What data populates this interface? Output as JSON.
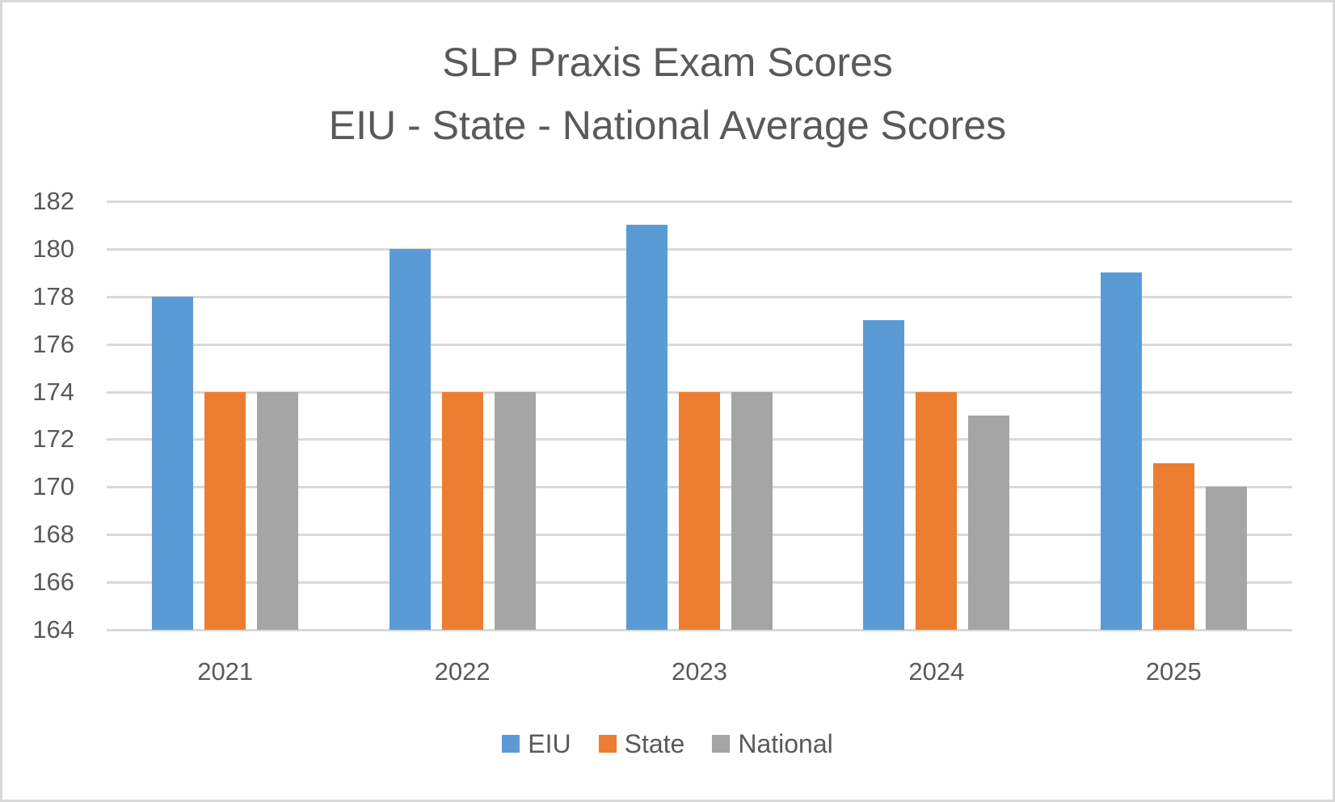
{
  "chart_data": {
    "type": "bar",
    "title": "SLP Praxis Exam Scores",
    "subtitle": "EIU - State - National Average Scores",
    "categories": [
      "2021",
      "2022",
      "2023",
      "2024",
      "2025"
    ],
    "series": [
      {
        "name": "EIU",
        "color": "#5b9bd5",
        "values": [
          178,
          180,
          181,
          177,
          179
        ]
      },
      {
        "name": "State",
        "color": "#ed7d31",
        "values": [
          174,
          174,
          174,
          174,
          171
        ]
      },
      {
        "name": "National",
        "color": "#a5a5a5",
        "values": [
          174,
          174,
          174,
          173,
          170
        ]
      }
    ],
    "xlabel": "",
    "ylabel": "",
    "ylim": [
      164,
      182
    ],
    "yticks": [
      "182",
      "180",
      "178",
      "176",
      "174",
      "172",
      "170",
      "168",
      "166",
      "164"
    ],
    "grid": true,
    "legend_position": "bottom"
  }
}
